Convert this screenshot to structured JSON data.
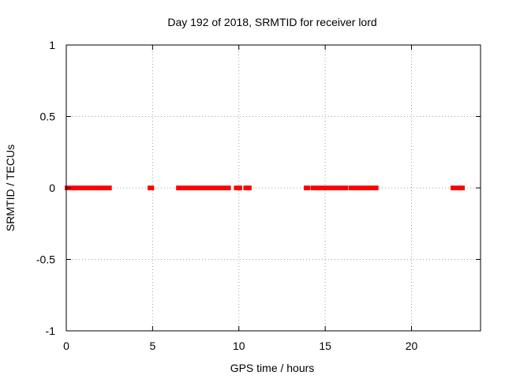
{
  "chart_data": {
    "type": "scatter",
    "title": "Day 192 of 2018, SRMTID for receiver lord",
    "xlabel": "GPS time / hours",
    "ylabel": "SRMTID / TECUs",
    "xlim": [
      0,
      24
    ],
    "ylim": [
      -1,
      1
    ],
    "x_ticks": [
      0,
      5,
      10,
      15,
      20
    ],
    "x_tick_labels": [
      "0",
      "5",
      "10",
      "15",
      "20"
    ],
    "y_ticks": [
      1,
      0.5,
      0,
      -0.5,
      -1
    ],
    "y_tick_labels": [
      "1",
      "0.5",
      "0",
      "-0.5",
      "-1"
    ],
    "grid": true,
    "marker_color": "#ff0000",
    "series": [
      {
        "name": "SRMTID",
        "y_value": 0,
        "x_segments": [
          [
            0.05,
            2.5
          ],
          [
            4.85,
            4.95
          ],
          [
            6.5,
            9.4
          ],
          [
            9.85,
            10.05
          ],
          [
            10.4,
            10.6
          ],
          [
            13.9,
            14.0
          ],
          [
            14.3,
            14.7
          ],
          [
            14.9,
            15.7
          ],
          [
            15.9,
            16.2
          ],
          [
            16.5,
            17.5
          ],
          [
            17.7,
            17.95
          ],
          [
            22.4,
            22.95
          ]
        ]
      }
    ]
  }
}
